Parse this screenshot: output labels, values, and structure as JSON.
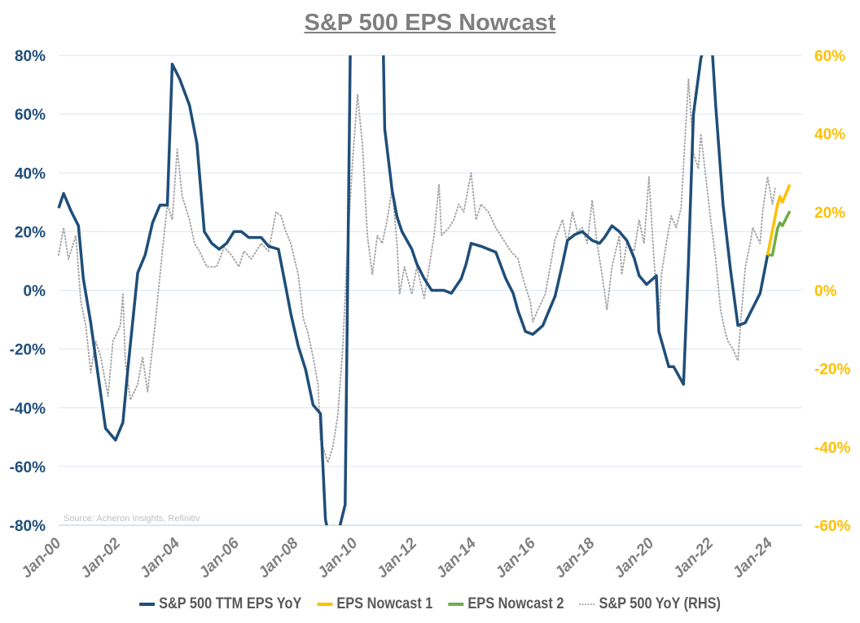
{
  "chart_data": {
    "type": "line",
    "title": "S&P 500 EPS Nowcast",
    "source": "Source: Acheron Insights, Refinitiv",
    "x_tick_labels": [
      "Jan-00",
      "Jan-02",
      "Jan-04",
      "Jan-06",
      "Jan-08",
      "Jan-10",
      "Jan-12",
      "Jan-14",
      "Jan-16",
      "Jan-18",
      "Jan-20",
      "Jan-22",
      "Jan-24"
    ],
    "y_left": {
      "range": [
        -80,
        80
      ],
      "ticks": [
        "80%",
        "60%",
        "40%",
        "20%",
        "0%",
        "-20%",
        "-40%",
        "-60%",
        "-80%"
      ],
      "color": "#1f4e79"
    },
    "y_right": {
      "range": [
        -60,
        60
      ],
      "ticks": [
        "60%",
        "40%",
        "20%",
        "0%",
        "-20%",
        "-40%",
        "-60%"
      ],
      "color": "#ffc000"
    },
    "grid": true,
    "legend_position": "bottom",
    "series": [
      {
        "name": "S&P 500 TTM EPS YoY",
        "axis": "left",
        "color": "#1f4e79",
        "style": "solid",
        "points": [
          [
            "2000-01",
            28
          ],
          [
            "2000-03",
            33
          ],
          [
            "2000-06",
            27
          ],
          [
            "2000-09",
            22
          ],
          [
            "2000-11",
            4
          ],
          [
            "2001-02",
            -11
          ],
          [
            "2001-05",
            -29
          ],
          [
            "2001-08",
            -47
          ],
          [
            "2001-12",
            -51
          ],
          [
            "2002-03",
            -45
          ],
          [
            "2002-05",
            -27
          ],
          [
            "2002-09",
            6
          ],
          [
            "2002-12",
            12
          ],
          [
            "2003-03",
            23
          ],
          [
            "2003-06",
            29
          ],
          [
            "2003-09",
            29
          ],
          [
            "2003-11",
            77
          ],
          [
            "2004-02",
            72
          ],
          [
            "2004-06",
            63
          ],
          [
            "2004-09",
            50
          ],
          [
            "2004-12",
            20
          ],
          [
            "2005-03",
            16
          ],
          [
            "2005-06",
            14
          ],
          [
            "2005-09",
            16
          ],
          [
            "2005-12",
            20
          ],
          [
            "2006-03",
            20
          ],
          [
            "2006-06",
            18
          ],
          [
            "2006-08",
            18
          ],
          [
            "2006-11",
            18
          ],
          [
            "2007-02",
            15
          ],
          [
            "2007-06",
            14
          ],
          [
            "2007-09",
            1
          ],
          [
            "2007-11",
            -8
          ],
          [
            "2008-02",
            -19
          ],
          [
            "2008-05",
            -27
          ],
          [
            "2008-08",
            -39
          ],
          [
            "2008-11",
            -42
          ],
          [
            "2009-01",
            -78
          ],
          [
            "2009-04",
            -90
          ],
          [
            "2009-09",
            -73
          ],
          [
            "2009-12",
            150
          ],
          [
            "2010-11",
            150
          ],
          [
            "2011-01",
            55
          ],
          [
            "2011-04",
            34
          ],
          [
            "2011-06",
            25
          ],
          [
            "2011-08",
            20
          ],
          [
            "2011-12",
            14
          ],
          [
            "2012-02",
            9
          ],
          [
            "2012-05",
            4
          ],
          [
            "2012-08",
            0
          ],
          [
            "2013-01",
            0
          ],
          [
            "2013-04",
            -1
          ],
          [
            "2013-08",
            4
          ],
          [
            "2013-10",
            9
          ],
          [
            "2013-12",
            16
          ],
          [
            "2014-04",
            15
          ],
          [
            "2014-07",
            14
          ],
          [
            "2014-10",
            13
          ],
          [
            "2015-02",
            4
          ],
          [
            "2015-05",
            -1
          ],
          [
            "2015-07",
            -7
          ],
          [
            "2015-10",
            -14
          ],
          [
            "2016-01",
            -15
          ],
          [
            "2016-05",
            -12
          ],
          [
            "2016-07",
            -8
          ],
          [
            "2016-10",
            -2
          ],
          [
            "2017-01",
            9
          ],
          [
            "2017-03",
            17
          ],
          [
            "2017-06",
            19
          ],
          [
            "2017-09",
            20
          ],
          [
            "2018-01",
            17
          ],
          [
            "2018-04",
            16
          ],
          [
            "2018-06",
            18
          ],
          [
            "2018-09",
            22
          ],
          [
            "2018-12",
            20
          ],
          [
            "2019-03",
            17
          ],
          [
            "2019-06",
            11
          ],
          [
            "2019-08",
            5
          ],
          [
            "2019-11",
            2
          ],
          [
            "2020-03",
            5
          ],
          [
            "2020-04",
            -14
          ],
          [
            "2020-08",
            -26
          ],
          [
            "2020-10",
            -26
          ],
          [
            "2021-02",
            -32
          ],
          [
            "2021-04",
            10
          ],
          [
            "2021-06",
            60
          ],
          [
            "2021-09",
            79
          ],
          [
            "2022-01",
            90
          ],
          [
            "2022-03",
            63
          ],
          [
            "2022-06",
            29
          ],
          [
            "2022-09",
            7
          ],
          [
            "2022-12",
            -12
          ],
          [
            "2023-03",
            -11
          ],
          [
            "2023-06",
            -6
          ],
          [
            "2023-09",
            -1
          ],
          [
            "2023-12",
            12
          ]
        ]
      },
      {
        "name": "EPS Nowcast 1",
        "axis": "left",
        "color": "#ffc000",
        "style": "solid",
        "points": [
          [
            "2023-12",
            12
          ],
          [
            "2024-04",
            29
          ],
          [
            "2024-05",
            32
          ],
          [
            "2024-06",
            30
          ],
          [
            "2024-09",
            36
          ]
        ]
      },
      {
        "name": "EPS Nowcast 2",
        "axis": "left",
        "color": "#70ad47",
        "style": "solid",
        "points": [
          [
            "2023-12",
            12
          ],
          [
            "2024-02",
            12
          ],
          [
            "2024-04",
            21
          ],
          [
            "2024-05",
            23
          ],
          [
            "2024-06",
            22
          ],
          [
            "2024-09",
            27
          ]
        ]
      },
      {
        "name": "S&P 500 YoY (RHS)",
        "axis": "right",
        "color": "#a6a6a6",
        "style": "dotted",
        "points": [
          [
            "2000-01",
            9
          ],
          [
            "2000-03",
            16
          ],
          [
            "2000-05",
            8
          ],
          [
            "2000-08",
            14
          ],
          [
            "2000-10",
            -3
          ],
          [
            "2000-12",
            -9
          ],
          [
            "2001-02",
            -21
          ],
          [
            "2001-04",
            -13
          ],
          [
            "2001-06",
            -17
          ],
          [
            "2001-09",
            -27
          ],
          [
            "2001-11",
            -13
          ],
          [
            "2002-02",
            -9
          ],
          [
            "2002-03",
            -1
          ],
          [
            "2002-04",
            -18
          ],
          [
            "2002-06",
            -28
          ],
          [
            "2002-09",
            -24
          ],
          [
            "2002-11",
            -17
          ],
          [
            "2003-01",
            -26
          ],
          [
            "2003-04",
            -9
          ],
          [
            "2003-07",
            10
          ],
          [
            "2003-09",
            22
          ],
          [
            "2003-11",
            18
          ],
          [
            "2004-01",
            36
          ],
          [
            "2004-03",
            24
          ],
          [
            "2004-06",
            18
          ],
          [
            "2004-08",
            12
          ],
          [
            "2004-10",
            10
          ],
          [
            "2005-01",
            6
          ],
          [
            "2005-05",
            6
          ],
          [
            "2005-08",
            11
          ],
          [
            "2005-11",
            9
          ],
          [
            "2006-02",
            6
          ],
          [
            "2006-04",
            10
          ],
          [
            "2006-07",
            8
          ],
          [
            "2006-11",
            12
          ],
          [
            "2007-02",
            10
          ],
          [
            "2007-05",
            20
          ],
          [
            "2007-07",
            19
          ],
          [
            "2007-09",
            15
          ],
          [
            "2007-11",
            12
          ],
          [
            "2008-02",
            4
          ],
          [
            "2008-04",
            -7
          ],
          [
            "2008-06",
            -11
          ],
          [
            "2008-08",
            -17
          ],
          [
            "2008-10",
            -24
          ],
          [
            "2008-11",
            -38
          ],
          [
            "2009-02",
            -44
          ],
          [
            "2009-04",
            -40
          ],
          [
            "2009-06",
            -32
          ],
          [
            "2009-08",
            -15
          ],
          [
            "2009-10",
            12
          ],
          [
            "2009-12",
            33
          ],
          [
            "2010-02",
            50
          ],
          [
            "2010-04",
            37
          ],
          [
            "2010-06",
            14
          ],
          [
            "2010-08",
            4
          ],
          [
            "2010-10",
            14
          ],
          [
            "2010-12",
            12
          ],
          [
            "2011-02",
            18
          ],
          [
            "2011-04",
            26
          ],
          [
            "2011-06",
            12
          ],
          [
            "2011-07",
            -1
          ],
          [
            "2011-09",
            6
          ],
          [
            "2011-12",
            -1
          ],
          [
            "2012-02",
            6
          ],
          [
            "2012-05",
            -2
          ],
          [
            "2012-07",
            6
          ],
          [
            "2012-09",
            14
          ],
          [
            "2012-11",
            27
          ],
          [
            "2012-12",
            14
          ],
          [
            "2013-03",
            16
          ],
          [
            "2013-05",
            18
          ],
          [
            "2013-07",
            22
          ],
          [
            "2013-09",
            20
          ],
          [
            "2013-12",
            30
          ],
          [
            "2014-02",
            18
          ],
          [
            "2014-04",
            22
          ],
          [
            "2014-07",
            20
          ],
          [
            "2014-10",
            16
          ],
          [
            "2015-02",
            12
          ],
          [
            "2015-04",
            10
          ],
          [
            "2015-07",
            8
          ],
          [
            "2015-09",
            3
          ],
          [
            "2015-12",
            -3
          ],
          [
            "2016-01",
            -8
          ],
          [
            "2016-03",
            -5
          ],
          [
            "2016-06",
            -1
          ],
          [
            "2016-08",
            6
          ],
          [
            "2016-10",
            13
          ],
          [
            "2017-01",
            18
          ],
          [
            "2017-03",
            12
          ],
          [
            "2017-05",
            20
          ],
          [
            "2017-07",
            15
          ],
          [
            "2017-09",
            16
          ],
          [
            "2017-11",
            12
          ],
          [
            "2018-01",
            23
          ],
          [
            "2018-03",
            12
          ],
          [
            "2018-05",
            4
          ],
          [
            "2018-07",
            -5
          ],
          [
            "2018-09",
            6
          ],
          [
            "2018-12",
            14
          ],
          [
            "2019-01",
            4
          ],
          [
            "2019-03",
            12
          ],
          [
            "2019-06",
            10
          ],
          [
            "2019-08",
            18
          ],
          [
            "2019-10",
            12
          ],
          [
            "2019-12",
            29
          ],
          [
            "2020-02",
            8
          ],
          [
            "2020-04",
            -9
          ],
          [
            "2020-05",
            4
          ],
          [
            "2020-07",
            12
          ],
          [
            "2020-09",
            19
          ],
          [
            "2020-11",
            16
          ],
          [
            "2021-01",
            21
          ],
          [
            "2021-03",
            43
          ],
          [
            "2021-04",
            54
          ],
          [
            "2021-06",
            35
          ],
          [
            "2021-08",
            31
          ],
          [
            "2021-09",
            40
          ],
          [
            "2021-11",
            29
          ],
          [
            "2022-01",
            18
          ],
          [
            "2022-03",
            8
          ],
          [
            "2022-05",
            -5
          ],
          [
            "2022-07",
            -11
          ],
          [
            "2022-08",
            -13
          ],
          [
            "2022-10",
            -15
          ],
          [
            "2022-12",
            -18
          ],
          [
            "2023-01",
            -9
          ],
          [
            "2023-03",
            6
          ],
          [
            "2023-05",
            12
          ],
          [
            "2023-06",
            16
          ],
          [
            "2023-09",
            12
          ],
          [
            "2023-10",
            20
          ],
          [
            "2023-12",
            29
          ],
          [
            "2024-02",
            22
          ],
          [
            "2024-03",
            26
          ]
        ]
      }
    ]
  }
}
